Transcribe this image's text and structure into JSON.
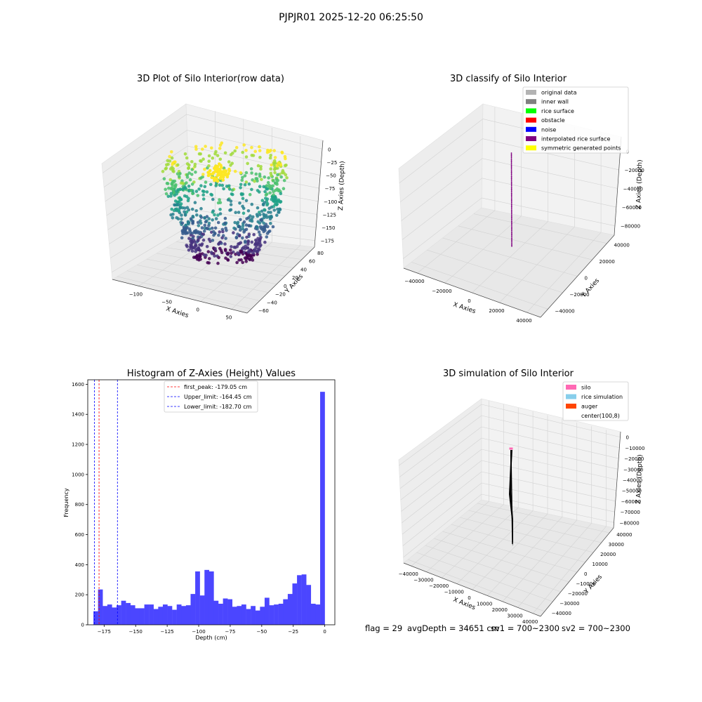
{
  "figure": {
    "title": "PJPJR01 2025-12-20 06:25:50",
    "footer": {
      "flag": "flag = 29",
      "avg_depth": "avgDepth = 34651 cm",
      "sv1": "sv1 = 700~2300",
      "sv2": "sv2 = 700~2300"
    }
  },
  "colors": {
    "hist_bar": "#4b46ff",
    "first_peak": "#ff0000",
    "limits": "#0000ff",
    "pane": "#f2f2f2",
    "grid": "#d0d0d0"
  },
  "chart_data": [
    {
      "type": "scatter",
      "projection": "3d",
      "title": "3D Plot of Silo Interior(row data)",
      "xlabel": "X Axies",
      "ylabel": "Y Axies",
      "zlabel": "Z Axies (Depth)",
      "x_ticks": [
        "−100",
        "−50",
        "0",
        "50"
      ],
      "y_ticks": [
        "−60",
        "−40",
        "−20",
        "0",
        "20",
        "40",
        "60",
        "80"
      ],
      "z_ticks": [
        "0",
        "−25",
        "−50",
        "−75",
        "−100",
        "−125",
        "−150",
        "−175"
      ],
      "xlim": [
        -130,
        75
      ],
      "ylim": [
        -65,
        90
      ],
      "zlim": [
        -190,
        5
      ],
      "colormap": "viridis (by depth)",
      "grid": true
    },
    {
      "type": "scatter",
      "projection": "3d",
      "title": "3D classify of Silo Interior",
      "xlabel": "X Axies",
      "ylabel": "Y Axies",
      "zlabel": "Z Axies (Depth)",
      "x_ticks": [
        "−40000",
        "−20000",
        "0",
        "20000",
        "40000"
      ],
      "y_ticks": [
        "−40000",
        "−20000",
        "0",
        "20000",
        "40000"
      ],
      "z_ticks": [
        "0",
        "−20000",
        "−40000",
        "−60000",
        "−80000"
      ],
      "xlim": [
        -45000,
        45000
      ],
      "ylim": [
        -45000,
        45000
      ],
      "zlim": [
        -90000,
        5000
      ],
      "legend": {
        "placement": "upper-right",
        "items": [
          {
            "label": "original data",
            "color": "#b3b3b3"
          },
          {
            "label": "inner wall",
            "color": "#808080"
          },
          {
            "label": "rice surface",
            "color": "#00ff00"
          },
          {
            "label": "obstacle",
            "color": "#ff0000"
          },
          {
            "label": "noise",
            "color": "#0000ff"
          },
          {
            "label": "interpolated rice surface",
            "color": "#800080"
          },
          {
            "label": "symmetric generated points",
            "color": "#ffff00"
          }
        ]
      },
      "grid": true
    },
    {
      "type": "bar",
      "subtype": "histogram",
      "title": "Histogram of Z-Axies (Height) Values",
      "xlabel": "Depth (cm)",
      "ylabel": "Frequency",
      "xlim": [
        -188,
        8
      ],
      "ylim": [
        0,
        1630
      ],
      "x_ticks": [
        {
          "value": -175,
          "label": "−175"
        },
        {
          "value": -150,
          "label": "−150"
        },
        {
          "value": -125,
          "label": "−125"
        },
        {
          "value": -100,
          "label": "−100"
        },
        {
          "value": -75,
          "label": "−75"
        },
        {
          "value": -50,
          "label": "−50"
        },
        {
          "value": -25,
          "label": "−25"
        },
        {
          "value": 0,
          "label": "0"
        }
      ],
      "y_ticks": [
        {
          "value": 0,
          "label": "0"
        },
        {
          "value": 200,
          "label": "200"
        },
        {
          "value": 400,
          "label": "400"
        },
        {
          "value": 600,
          "label": "600"
        },
        {
          "value": 800,
          "label": "800"
        },
        {
          "value": 1000,
          "label": "1000"
        },
        {
          "value": 1200,
          "label": "1200"
        },
        {
          "value": 1400,
          "label": "1400"
        },
        {
          "value": 1600,
          "label": "1600"
        }
      ],
      "bin_start": -183.5,
      "bin_width": 3.67,
      "values": [
        90,
        235,
        125,
        135,
        115,
        130,
        160,
        145,
        130,
        110,
        110,
        135,
        135,
        105,
        120,
        135,
        125,
        100,
        135,
        125,
        130,
        205,
        355,
        195,
        365,
        355,
        160,
        140,
        175,
        170,
        120,
        125,
        135,
        105,
        125,
        95,
        120,
        180,
        130,
        135,
        140,
        170,
        205,
        275,
        330,
        335,
        265,
        140,
        135,
        1550
      ],
      "vlines": [
        {
          "x": -179.05,
          "label": "first_peak: -179.05 cm",
          "color": "#ff0000"
        },
        {
          "x": -164.45,
          "label": "Upper_limit: -164.45 cm",
          "color": "#0000ff"
        },
        {
          "x": -182.7,
          "label": "Lower_limit: -182.70 cm",
          "color": "#0000ff"
        }
      ],
      "legend": "top-center",
      "grid": false
    },
    {
      "type": "scatter",
      "projection": "3d",
      "title": "3D simulation of Silo Interior",
      "xlabel": "X Axies",
      "ylabel": "Y Axies",
      "zlabel": "Z Axies (Depth)",
      "x_ticks": [
        "−40000",
        "−30000",
        "−20000",
        "−10000",
        "0",
        "10000",
        "20000",
        "30000",
        "40000"
      ],
      "y_ticks": [
        "−40000",
        "−30000",
        "−20000",
        "−10000",
        "0",
        "10000",
        "20000",
        "30000",
        "40000"
      ],
      "z_ticks": [
        "0",
        "−10000",
        "−20000",
        "−30000",
        "−40000",
        "−50000",
        "−60000",
        "−70000",
        "−80000"
      ],
      "xlim": [
        -45000,
        45000
      ],
      "ylim": [
        -45000,
        45000
      ],
      "zlim": [
        -85000,
        5000
      ],
      "legend": {
        "placement": "upper-right",
        "items": [
          {
            "label": "silo",
            "color": "#ff69b4"
          },
          {
            "label": "rice simulation",
            "color": "#87ceeb"
          },
          {
            "label": "auger",
            "color": "#ff4500"
          },
          {
            "label": "center(100,8)",
            "color": ""
          }
        ]
      },
      "grid": true
    }
  ]
}
